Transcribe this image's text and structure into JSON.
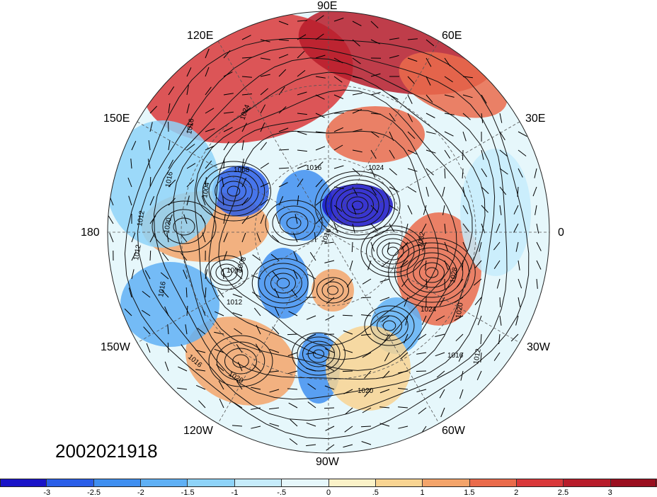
{
  "timestamp": "2002021918",
  "longitude_labels": {
    "lon_90e": "90E",
    "lon_120e": "120E",
    "lon_60e": "60E",
    "lon_150e": "150E",
    "lon_30e": "30E",
    "lon_180": "180",
    "lon_0": "0",
    "lon_150w": "150W",
    "lon_30w": "30W",
    "lon_120w": "120W",
    "lon_60w": "60W",
    "lon_90w": "90W"
  },
  "contour_labels": [
    "1024",
    "1016",
    "1008",
    "1016",
    "1004",
    "1008",
    "1012",
    "1020",
    "1012",
    "1016",
    "1016",
    "1024",
    "1016",
    "1032",
    "1028",
    "1024",
    "1020",
    "1016",
    "1012",
    "1020",
    "1016",
    "1008",
    "1012",
    "1020"
  ],
  "colorbar": {
    "ticks": [
      "-3",
      "-2.5",
      "-2",
      "-1.5",
      "-1",
      "-.5",
      "0",
      ".5",
      "1",
      "1.5",
      "2",
      "2.5",
      "3"
    ],
    "colors": [
      "#1a14c8",
      "#2a5ee8",
      "#3f8ff0",
      "#5fb0f5",
      "#8ed3f8",
      "#c6ecfb",
      "#e6f7fb",
      "#fbf2c8",
      "#f8d492",
      "#f3a46a",
      "#ea6b4b",
      "#d9383a",
      "#b71c2a",
      "#9a0f1f"
    ]
  },
  "map": {
    "anomaly_blobs": [
      {
        "color": "#d9383a"
      },
      {
        "color": "#ea6b4b"
      },
      {
        "color": "#b71c2a"
      },
      {
        "color": "#ea6b4b"
      },
      {
        "color": "#f3a46a"
      },
      {
        "color": "#f3a46a"
      },
      {
        "color": "#2a5ee8"
      },
      {
        "color": "#3f8ff0"
      },
      {
        "color": "#1a14c8"
      },
      {
        "color": "#3f8ff0"
      },
      {
        "color": "#5fb0f5"
      },
      {
        "color": "#3f8ff0"
      },
      {
        "color": "#f3a46a"
      },
      {
        "color": "#ea6b4b"
      },
      {
        "color": "#5fb0f5"
      },
      {
        "color": "#8ed3f8"
      },
      {
        "color": "#f8d492"
      },
      {
        "color": "#c6ecfb"
      }
    ]
  }
}
